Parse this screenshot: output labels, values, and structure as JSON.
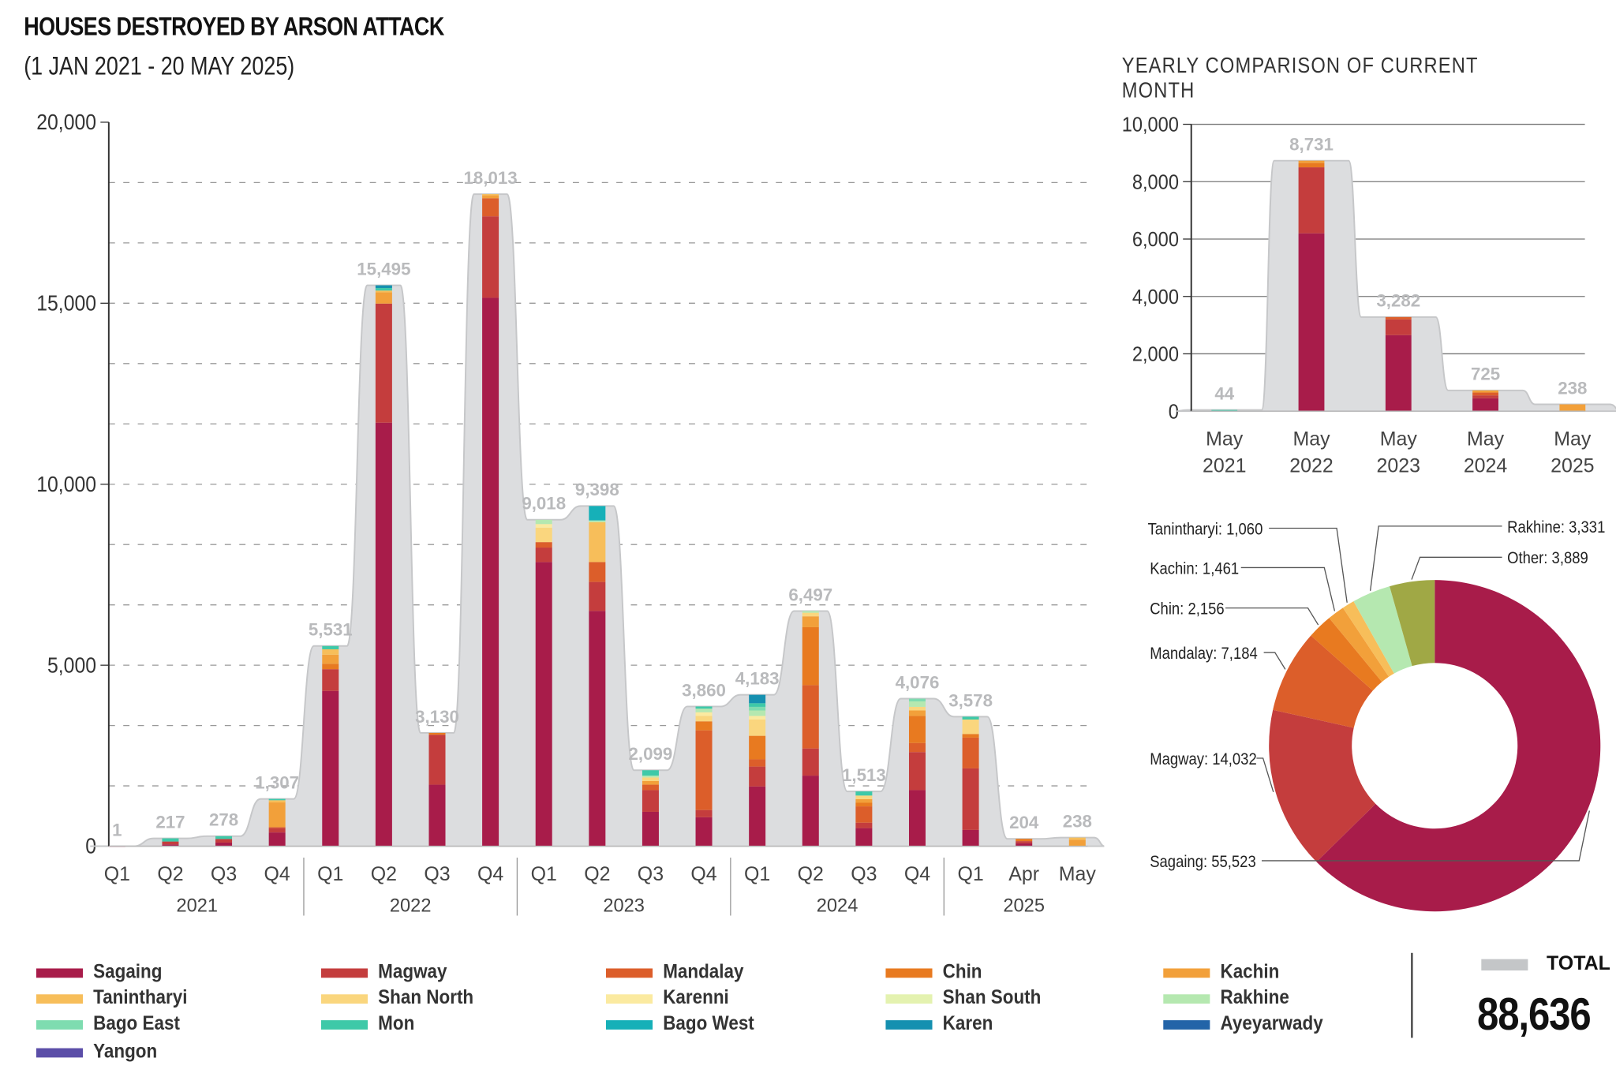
{
  "header": {
    "title": "HOUSES DESTROYED BY ARSON ATTACK",
    "subtitle": "(1 JAN 2021 - 20 MAY 2025)",
    "right_title": "YEARLY COMPARISON OF CURRENT MONTH"
  },
  "series": [
    {
      "name": "Sagaing",
      "color": "#a81c4a"
    },
    {
      "name": "Magway",
      "color": "#c43d3d"
    },
    {
      "name": "Mandalay",
      "color": "#dc5e2a"
    },
    {
      "name": "Chin",
      "color": "#e87a20"
    },
    {
      "name": "Kachin",
      "color": "#f2a03a"
    },
    {
      "name": "Tanintharyi",
      "color": "#f7be5a"
    },
    {
      "name": "Shan North",
      "color": "#fad67e"
    },
    {
      "name": "Karenni",
      "color": "#fbeaa0"
    },
    {
      "name": "Shan South",
      "color": "#e4f2b0"
    },
    {
      "name": "Rakhine",
      "color": "#b5e8b0"
    },
    {
      "name": "Bago East",
      "color": "#7edcb0"
    },
    {
      "name": "Mon",
      "color": "#3ec9a8"
    },
    {
      "name": "Bago West",
      "color": "#16b0b8"
    },
    {
      "name": "Karen",
      "color": "#1590b0"
    },
    {
      "name": "Ayeyarwady",
      "color": "#2364a8"
    },
    {
      "name": "Yangon",
      "color": "#5b4ea8"
    }
  ],
  "total": {
    "label": "TOTAL",
    "value": "88,636",
    "color": "#c4c6c8"
  },
  "chart_data": [
    {
      "type": "bar",
      "stacked": true,
      "title": "HOUSES DESTROYED BY ARSON ATTACK",
      "ylim": [
        0,
        20000
      ],
      "yticks": [
        "0",
        "5,000",
        "10,000",
        "15,000",
        "20,000"
      ],
      "categories": [
        "Q1",
        "Q2",
        "Q3",
        "Q4",
        "Q1",
        "Q2",
        "Q3",
        "Q4",
        "Q1",
        "Q2",
        "Q3",
        "Q4",
        "Q1",
        "Q2",
        "Q3",
        "Q4",
        "Q1",
        "Apr",
        "May"
      ],
      "groups": [
        {
          "label": "2021",
          "span": 4
        },
        {
          "label": "2022",
          "span": 4
        },
        {
          "label": "2023",
          "span": 4
        },
        {
          "label": "2024",
          "span": 4
        },
        {
          "label": "2025",
          "span": 3
        }
      ],
      "totals": [
        1,
        217,
        278,
        1307,
        5531,
        15495,
        3130,
        18013,
        9018,
        9398,
        2099,
        3860,
        4183,
        6497,
        1513,
        4076,
        3578,
        204,
        238
      ],
      "total_labels": [
        "1",
        "217",
        "278",
        "1,307",
        "5,531",
        "15,495",
        "3,130",
        "18,013",
        "9,018",
        "9,398",
        "2,099",
        "3,860",
        "4,183",
        "6,497",
        "1,513",
        "4,076",
        "3,578",
        "204",
        "238"
      ],
      "segments": [
        {
          "Sagaing": 1
        },
        {
          "Sagaing": 50,
          "Magway": 80,
          "Mon": 87
        },
        {
          "Sagaing": 100,
          "Magway": 100,
          "Mon": 78
        },
        {
          "Sagaing": 380,
          "Magway": 120,
          "Mandalay": 30,
          "Kachin": 680,
          "Tanintharyi": 60,
          "Mon": 37
        },
        {
          "Sagaing": 4290,
          "Magway": 600,
          "Chin": 150,
          "Kachin": 250,
          "Tanintharyi": 150,
          "Mon": 91
        },
        {
          "Sagaing": 11700,
          "Magway": 3290,
          "Kachin": 310,
          "Tanintharyi": 50,
          "Mon": 70,
          "Karen": 75
        },
        {
          "Sagaing": 1700,
          "Magway": 1380,
          "Chin": 50
        },
        {
          "Sagaing": 15150,
          "Magway": 2250,
          "Mandalay": 500,
          "Kachin": 80,
          "Tanintharyi": 33
        },
        {
          "Sagaing": 7850,
          "Magway": 400,
          "Mandalay": 150,
          "Shan North": 400,
          "Karenni": 100,
          "Rakhine": 118
        },
        {
          "Sagaing": 6500,
          "Magway": 800,
          "Mandalay": 550,
          "Tanintharyi": 1100,
          "Rakhine": 50,
          "Bago West": 398
        },
        {
          "Sagaing": 950,
          "Magway": 600,
          "Mandalay": 150,
          "Kachin": 100,
          "Shan North": 100,
          "Rakhine": 50,
          "Mon": 149
        },
        {
          "Sagaing": 800,
          "Magway": 200,
          "Mandalay": 2200,
          "Chin": 250,
          "Shan North": 150,
          "Karenni": 100,
          "Rakhine": 100,
          "Mon": 60
        },
        {
          "Sagaing": 1650,
          "Magway": 550,
          "Mandalay": 200,
          "Chin": 650,
          "Shan North": 450,
          "Karenni": 100,
          "Rakhine": 150,
          "Bago East": 100,
          "Mon": 100,
          "Karen": 233
        },
        {
          "Sagaing": 1950,
          "Magway": 750,
          "Mandalay": 1750,
          "Chin": 1600,
          "Kachin": 300,
          "Shan North": 100,
          "Rakhine": 47
        },
        {
          "Sagaing": 500,
          "Magway": 150,
          "Mandalay": 450,
          "Chin": 100,
          "Kachin": 100,
          "Shan North": 100,
          "Mon": 113
        },
        {
          "Sagaing": 1550,
          "Magway": 1050,
          "Mandalay": 250,
          "Chin": 750,
          "Kachin": 150,
          "Shan North": 100,
          "Rakhine": 150,
          "Bago East": 76
        },
        {
          "Sagaing": 450,
          "Magway": 1700,
          "Mandalay": 850,
          "Chin": 100,
          "Shan North": 400,
          "Mon": 78
        },
        {
          "Sagaing": 80,
          "Magway": 60,
          "Chin": 64
        },
        {
          "Kachin": 180,
          "Tanintharyi": 58
        }
      ]
    },
    {
      "type": "bar",
      "stacked": true,
      "title": "YEARLY COMPARISON OF CURRENT MONTH",
      "ylim": [
        0,
        10000
      ],
      "yticks": [
        "0",
        "2,000",
        "4,000",
        "6,000",
        "8,000",
        "10,000"
      ],
      "categories": [
        [
          "May",
          "2021"
        ],
        [
          "May",
          "2022"
        ],
        [
          "May",
          "2023"
        ],
        [
          "May",
          "2024"
        ],
        [
          "May",
          "2025"
        ]
      ],
      "totals": [
        44,
        8731,
        3282,
        725,
        238
      ],
      "total_labels": [
        "44",
        "8,731",
        "3,282",
        "725",
        "238"
      ],
      "segments": [
        {
          "Mon": 44
        },
        {
          "Sagaing": 6200,
          "Magway": 2300,
          "Chin": 150,
          "Kachin": 81
        },
        {
          "Sagaing": 2650,
          "Magway": 550,
          "Mandalay": 82
        },
        {
          "Sagaing": 450,
          "Magway": 100,
          "Mandalay": 100,
          "Kachin": 75
        },
        {
          "Kachin": 238
        }
      ]
    },
    {
      "type": "pie",
      "donut": true,
      "slices": [
        {
          "name": "Sagaing",
          "value": 55523,
          "label": "Sagaing: 55,523",
          "color": "#a81c4a"
        },
        {
          "name": "Magway",
          "value": 14032,
          "label": "Magway: 14,032",
          "color": "#c43d3d"
        },
        {
          "name": "Mandalay",
          "value": 7184,
          "label": "Mandalay: 7,184",
          "color": "#dc5e2a"
        },
        {
          "name": "Chin",
          "value": 2156,
          "label": "Chin: 2,156",
          "color": "#e87a20"
        },
        {
          "name": "Kachin",
          "value": 1461,
          "label": "Kachin: 1,461",
          "color": "#f2a03a"
        },
        {
          "name": "Tanintharyi",
          "value": 1060,
          "label": "Tanintharyi: 1,060",
          "color": "#f7be5a"
        },
        {
          "name": "Rakhine",
          "value": 3331,
          "label": "Rakhine: 3,331",
          "color": "#b5e8b0"
        },
        {
          "name": "Other",
          "value": 3889,
          "label": "Other: 3,889",
          "color": "#a0a845"
        }
      ]
    }
  ]
}
